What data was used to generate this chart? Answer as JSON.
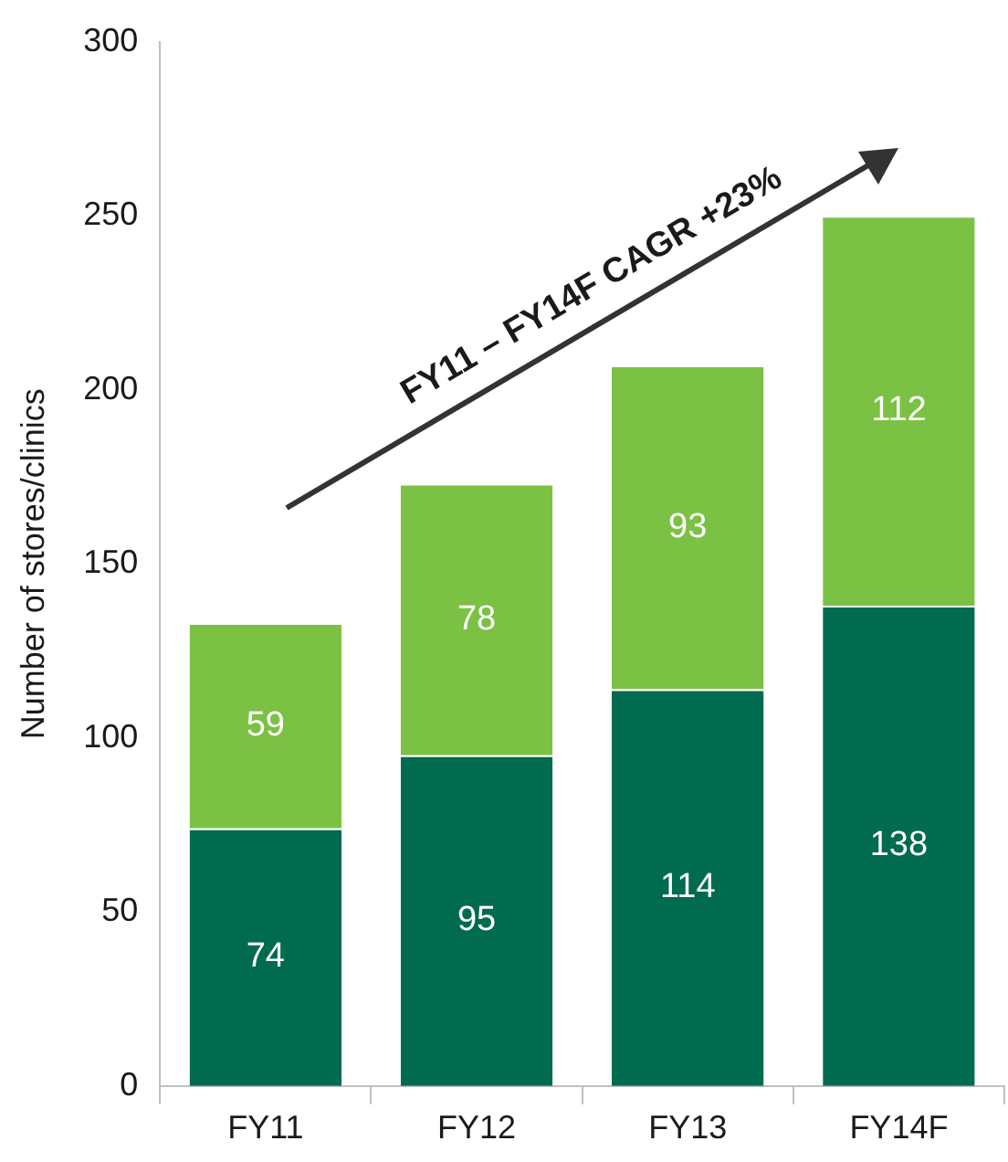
{
  "chart_data": {
    "type": "bar",
    "stacked": true,
    "ylabel": "Number of stores/clinics",
    "categories": [
      "FY11",
      "FY12",
      "FY13",
      "FY14F"
    ],
    "series": [
      {
        "color": "#006b4f",
        "values": [
          74,
          95,
          114,
          138
        ]
      },
      {
        "color": "#7bc143",
        "values": [
          59,
          78,
          93,
          112
        ]
      }
    ],
    "ylim": [
      0,
      300
    ],
    "yticks": [
      0,
      50,
      100,
      150,
      200,
      250,
      300
    ],
    "grid": false,
    "legend": false,
    "data_labels": true,
    "annotations": [
      "FY11 – FY14F CAGR +23%"
    ]
  }
}
